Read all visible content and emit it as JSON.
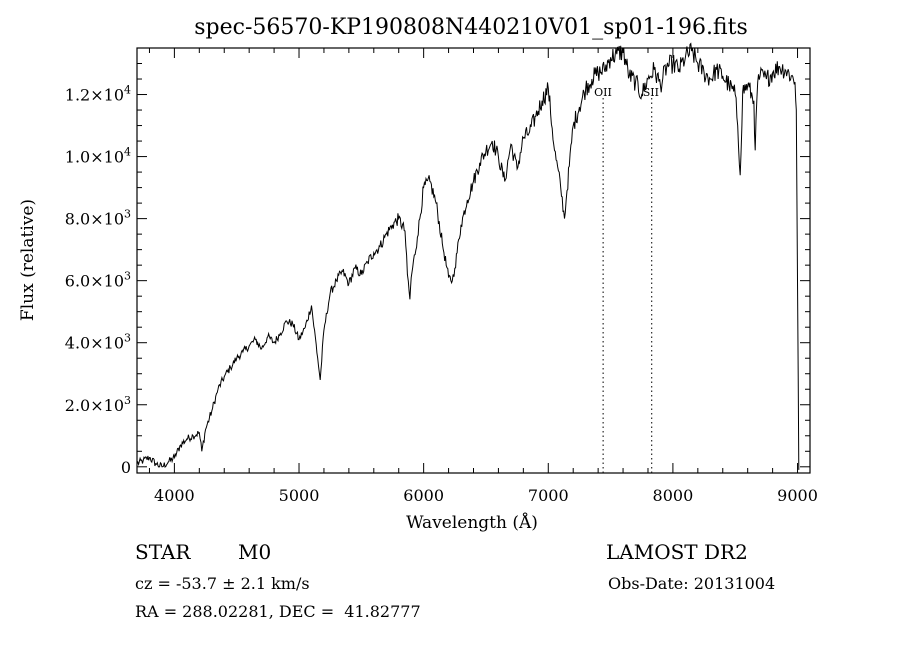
{
  "header": {
    "title": "spec-56570-KP190808N440210V01_sp01-196.fits"
  },
  "footer": {
    "object_class": "STAR",
    "subclass": "M0",
    "survey": "LAMOST DR2",
    "cz": "cz = -53.7 ± 2.1 km/s",
    "obs_date": "Obs-Date: 20131004",
    "coords": "RA = 288.02281, DEC =  41.82777"
  },
  "chart_data": {
    "type": "line",
    "title": "spec-56570-KP190808N440210V01_sp01-196.fits",
    "xlabel": "Wavelength (Å)",
    "ylabel": "Flux (relative)",
    "xlim": [
      3700,
      9100
    ],
    "ylim": [
      -200,
      13500
    ],
    "x_ticks": [
      4000,
      5000,
      6000,
      7000,
      8000,
      9000
    ],
    "y_ticks": [
      {
        "value": 0,
        "mantissa": "0",
        "exp": ""
      },
      {
        "value": 2000,
        "mantissa": "2.0×10",
        "exp": "3"
      },
      {
        "value": 4000,
        "mantissa": "4.0×10",
        "exp": "3"
      },
      {
        "value": 6000,
        "mantissa": "6.0×10",
        "exp": "3"
      },
      {
        "value": 8000,
        "mantissa": "8.0×10",
        "exp": "3"
      },
      {
        "value": 10000,
        "mantissa": "1.0×10",
        "exp": "4"
      },
      {
        "value": 12000,
        "mantissa": "1.2×10",
        "exp": "4"
      }
    ],
    "line_color": "#000000",
    "grid": false,
    "series": [
      {
        "x": [
          3700,
          3750,
          3800,
          3850,
          3900,
          3950,
          4000,
          4050,
          4100,
          4150,
          4200,
          4220,
          4250,
          4300,
          4350,
          4400,
          4450,
          4500,
          4550,
          4600,
          4650,
          4700,
          4750,
          4800,
          4850,
          4900,
          4950,
          5000,
          5050,
          5100,
          5150,
          5170,
          5200,
          5250,
          5300,
          5350,
          5400,
          5450,
          5500,
          5550,
          5600,
          5650,
          5700,
          5750,
          5800,
          5850,
          5870,
          5890,
          5900,
          5950,
          6000,
          6050,
          6100,
          6150,
          6200,
          6230,
          6250,
          6300,
          6350,
          6400,
          6450,
          6500,
          6550,
          6600,
          6650,
          6700,
          6750,
          6800,
          6850,
          6900,
          6950,
          7000,
          7050,
          7100,
          7130,
          7150,
          7200,
          7250,
          7300,
          7350,
          7400,
          7450,
          7500,
          7550,
          7600,
          7650,
          7700,
          7750,
          7800,
          7850,
          7900,
          7950,
          8000,
          8050,
          8100,
          8150,
          8200,
          8250,
          8300,
          8350,
          8400,
          8450,
          8500,
          8520,
          8540,
          8560,
          8600,
          8650,
          8660,
          8680,
          8700,
          8750,
          8800,
          8850,
          8900,
          8950,
          8980,
          8990,
          9000,
          9010
        ],
        "y": [
          100,
          200,
          300,
          100,
          0,
          150,
          300,
          700,
          900,
          1000,
          1100,
          500,
          1200,
          1800,
          2500,
          2900,
          3200,
          3500,
          3700,
          3900,
          4100,
          3800,
          4200,
          4000,
          4300,
          4700,
          4600,
          4100,
          4500,
          5200,
          3500,
          2800,
          4400,
          5600,
          6000,
          6300,
          5900,
          6400,
          6200,
          6600,
          6900,
          7100,
          7500,
          7800,
          8000,
          7600,
          6200,
          5400,
          6100,
          7400,
          9000,
          9200,
          8500,
          7200,
          6100,
          6000,
          6400,
          7800,
          8600,
          9200,
          9800,
          10200,
          10500,
          10000,
          9200,
          10400,
          9600,
          10600,
          10800,
          11300,
          11800,
          12200,
          10200,
          9000,
          8000,
          8900,
          11000,
          11600,
          12200,
          12500,
          12700,
          12800,
          13200,
          13300,
          13400,
          12600,
          12400,
          12000,
          12500,
          12800,
          12300,
          12900,
          13000,
          12800,
          13200,
          13400,
          13000,
          12700,
          12500,
          12800,
          12600,
          12300,
          12000,
          11000,
          9400,
          12100,
          12300,
          11800,
          10200,
          12400,
          12600,
          12500,
          12700,
          12900,
          12800,
          12600,
          12400,
          11500,
          6000,
          -100
        ]
      }
    ],
    "annotations": [
      {
        "label": "OII",
        "x": 7440
      },
      {
        "label": "SII",
        "x": 7830
      }
    ]
  }
}
